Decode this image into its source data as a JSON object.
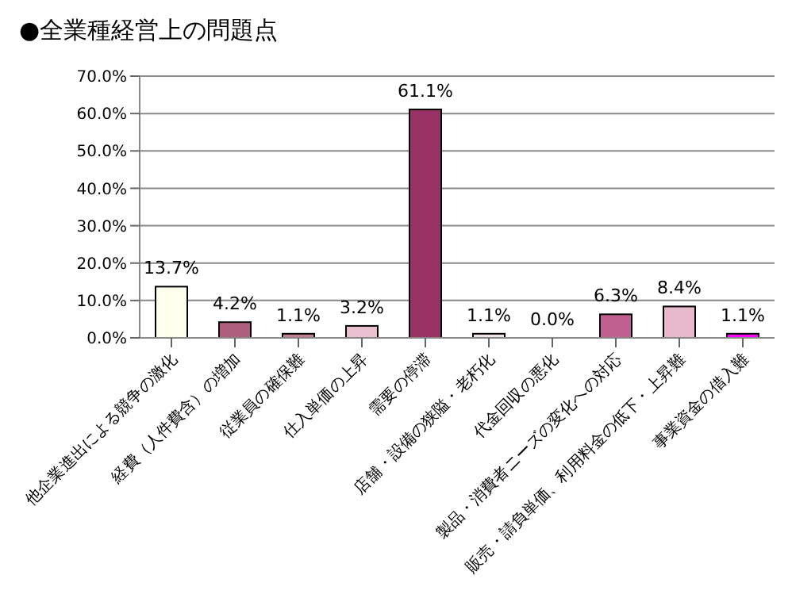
{
  "chart_data": {
    "type": "bar",
    "title": "●全業種経営上の問題点",
    "categories": [
      "他企業進出による競争の激化",
      "経費（人件費含）の増加",
      "従業員の確保難",
      "仕入単価の上昇",
      "需要の停滞",
      "店舗・設備の狭隘・老朽化",
      "代金回収の悪化",
      "製品・消費者ニーズの変化への対応",
      "販売・請負単価、利用料金の低下・上昇難",
      "事業資金の借入難"
    ],
    "values": [
      13.7,
      4.2,
      1.1,
      3.2,
      61.1,
      1.1,
      0.0,
      6.3,
      8.4,
      1.1
    ],
    "value_labels": [
      "13.7%",
      "4.2%",
      "1.1%",
      "3.2%",
      "61.1%",
      "1.1%",
      "0.0%",
      "6.3%",
      "8.4%",
      "1.1%"
    ],
    "colors": [
      "#ffffee",
      "#b0607f",
      "#c08090",
      "#e8c0d0",
      "#993366",
      "#f0e0e8",
      "#ffffff",
      "#c06090",
      "#e8b8cc",
      "#ff00ff"
    ],
    "ylim": [
      0,
      70
    ],
    "yticks": [
      {
        "value": 0,
        "label": "0.0%"
      },
      {
        "value": 10,
        "label": "10.0%"
      },
      {
        "value": 20,
        "label": "20.0%"
      },
      {
        "value": 30,
        "label": "30.0%"
      },
      {
        "value": 40,
        "label": "40.0%"
      },
      {
        "value": 50,
        "label": "50.0%"
      },
      {
        "value": 60,
        "label": "60.0%"
      },
      {
        "value": 70,
        "label": "70.0%"
      }
    ],
    "grid": "y"
  }
}
